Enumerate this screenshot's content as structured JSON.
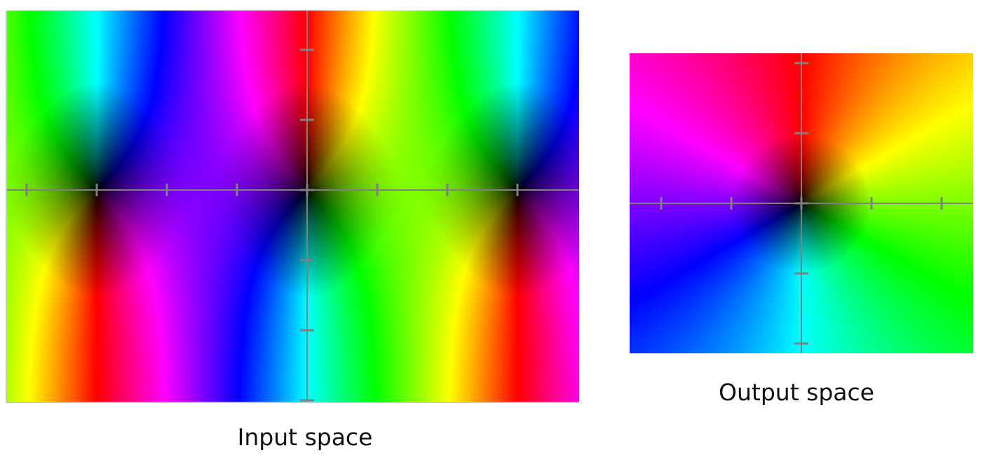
{
  "input_space": {
    "caption": "Input space",
    "axis_color": "#808080",
    "x_ticks": [
      -4,
      -3,
      -2,
      -1,
      0,
      1,
      2,
      3
    ],
    "y_ticks": [
      -3,
      -2,
      -1,
      0,
      1,
      2
    ],
    "x_range": [
      -4.28,
      3.88
    ],
    "y_range": [
      -3.02,
      2.56
    ]
  },
  "output_space": {
    "caption": "Output space",
    "axis_color": "#808080",
    "x_ticks": [
      -2,
      -1,
      0,
      1,
      2
    ],
    "y_ticks": [
      -2,
      -1,
      0,
      1,
      2
    ],
    "x_range": [
      -2.45,
      2.45
    ],
    "y_range": [
      -2.14,
      2.14
    ]
  }
}
